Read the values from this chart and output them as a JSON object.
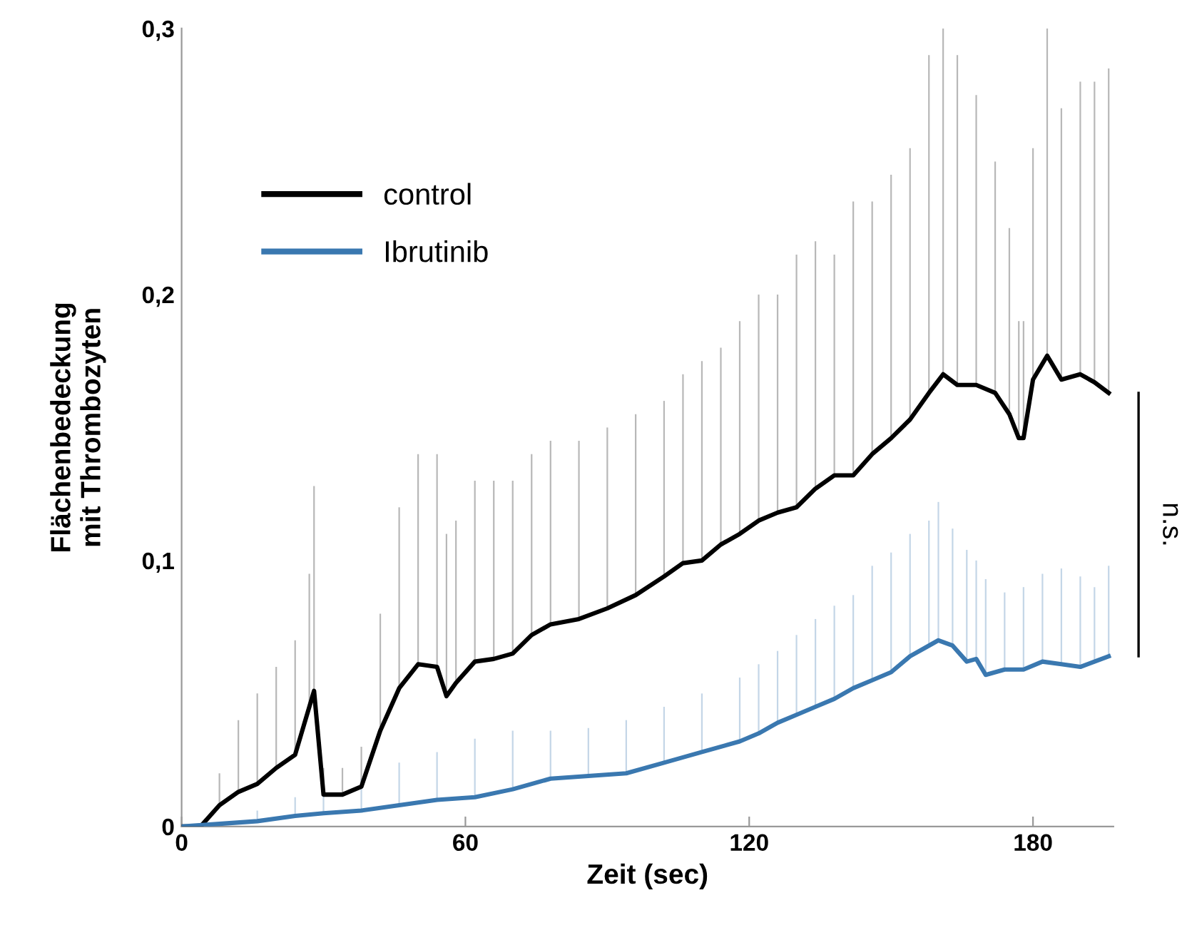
{
  "chart_data": {
    "type": "line",
    "xlabel": "Zeit (sec)",
    "ylabel": "Flächenbedeckung\nmit Thrombozyten",
    "xlim": [
      0,
      197
    ],
    "xticks": [
      0,
      60,
      120,
      180
    ],
    "ylim": [
      0,
      0.3
    ],
    "yticks": [
      0,
      {
        "value": 0.1,
        "label": "0,1"
      },
      {
        "value": 0.2,
        "label": "0,2"
      },
      {
        "value": 0.3,
        "label": "0,3"
      }
    ],
    "grid": false,
    "legend": "top left",
    "marker": "none",
    "line_style": "solid",
    "annotations": [
      "n.s."
    ],
    "series": [
      {
        "name": "control",
        "color": "#000000",
        "x": [
          0,
          4,
          8,
          12,
          16,
          20,
          24,
          27,
          28,
          30,
          34,
          38,
          42,
          46,
          50,
          54,
          56,
          58,
          62,
          66,
          70,
          74,
          78,
          84,
          90,
          96,
          102,
          106,
          110,
          114,
          118,
          122,
          126,
          130,
          134,
          138,
          142,
          146,
          150,
          154,
          158,
          161,
          164,
          168,
          172,
          175,
          177,
          178,
          180,
          183,
          186,
          190,
          193,
          196
        ],
        "values": [
          0,
          0,
          0.008,
          0.013,
          0.016,
          0.022,
          0.027,
          0.045,
          0.051,
          0.012,
          0.012,
          0.015,
          0.036,
          0.052,
          0.061,
          0.06,
          0.049,
          0.054,
          0.062,
          0.063,
          0.065,
          0.072,
          0.076,
          0.078,
          0.082,
          0.087,
          0.094,
          0.099,
          0.1,
          0.106,
          0.11,
          0.115,
          0.118,
          0.12,
          0.127,
          0.132,
          0.132,
          0.14,
          0.146,
          0.153,
          0.163,
          0.17,
          0.166,
          0.166,
          0.163,
          0.155,
          0.146,
          0.146,
          0.168,
          0.177,
          0.168,
          0.17,
          0.167,
          0.163
        ],
        "errors": [
          null,
          null,
          [
            0.008,
            0.02
          ],
          [
            0.013,
            0.04
          ],
          [
            0.016,
            0.05
          ],
          [
            0.022,
            0.06
          ],
          [
            0.027,
            0.07
          ],
          [
            0.045,
            0.095
          ],
          [
            0.051,
            0.128
          ],
          [
            0.012,
            0.022
          ],
          [
            0.012,
            0.022
          ],
          [
            0.015,
            0.03
          ],
          [
            0.036,
            0.08
          ],
          [
            0.052,
            0.12
          ],
          [
            0.061,
            0.14
          ],
          [
            0.06,
            0.14
          ],
          [
            0.049,
            0.11
          ],
          [
            0.054,
            0.115
          ],
          [
            0.062,
            0.13
          ],
          [
            0.063,
            0.13
          ],
          [
            0.065,
            0.13
          ],
          [
            0.072,
            0.14
          ],
          [
            0.076,
            0.145
          ],
          [
            0.078,
            0.145
          ],
          [
            0.082,
            0.15
          ],
          [
            0.087,
            0.155
          ],
          [
            0.094,
            0.16
          ],
          [
            0.099,
            0.17
          ],
          [
            0.1,
            0.175
          ],
          [
            0.106,
            0.18
          ],
          [
            0.11,
            0.19
          ],
          [
            0.115,
            0.2
          ],
          [
            0.118,
            0.2
          ],
          [
            0.12,
            0.215
          ],
          [
            0.127,
            0.22
          ],
          [
            0.132,
            0.215
          ],
          [
            0.132,
            0.235
          ],
          [
            0.14,
            0.235
          ],
          [
            0.146,
            0.245
          ],
          [
            0.153,
            0.255
          ],
          [
            0.163,
            0.29
          ],
          [
            0.17,
            0.3
          ],
          [
            0.166,
            0.29
          ],
          [
            0.166,
            0.275
          ],
          [
            0.163,
            0.25
          ],
          [
            0.155,
            0.225
          ],
          [
            0.146,
            0.19
          ],
          [
            0.146,
            0.19
          ],
          [
            0.168,
            0.255
          ],
          [
            0.177,
            0.3
          ],
          [
            0.168,
            0.27
          ],
          [
            0.17,
            0.28
          ],
          [
            0.167,
            0.28
          ],
          [
            0.163,
            0.285
          ]
        ]
      },
      {
        "name": "Ibrutinib",
        "color": "#3a78b0",
        "x": [
          0,
          8,
          16,
          24,
          30,
          38,
          46,
          54,
          62,
          70,
          78,
          86,
          94,
          102,
          110,
          118,
          122,
          126,
          130,
          134,
          138,
          142,
          146,
          150,
          154,
          158,
          160,
          163,
          166,
          168,
          170,
          174,
          178,
          182,
          186,
          190,
          193,
          196
        ],
        "values": [
          0,
          0.001,
          0.002,
          0.004,
          0.005,
          0.006,
          0.008,
          0.01,
          0.011,
          0.014,
          0.018,
          0.019,
          0.02,
          0.024,
          0.028,
          0.032,
          0.035,
          0.039,
          0.042,
          0.045,
          0.048,
          0.052,
          0.055,
          0.058,
          0.064,
          0.068,
          0.07,
          0.068,
          0.062,
          0.063,
          0.057,
          0.059,
          0.059,
          0.062,
          0.061,
          0.06,
          0.062,
          0.064
        ],
        "errors": [
          null,
          null,
          [
            0.002,
            0.006
          ],
          [
            0.004,
            0.011
          ],
          [
            0.005,
            0.013
          ],
          [
            0.006,
            0.018
          ],
          [
            0.008,
            0.024
          ],
          [
            0.01,
            0.028
          ],
          [
            0.011,
            0.033
          ],
          [
            0.014,
            0.036
          ],
          [
            0.018,
            0.036
          ],
          [
            0.019,
            0.037
          ],
          [
            0.02,
            0.04
          ],
          [
            0.024,
            0.045
          ],
          [
            0.028,
            0.05
          ],
          [
            0.032,
            0.056
          ],
          [
            0.035,
            0.061
          ],
          [
            0.039,
            0.066
          ],
          [
            0.042,
            0.072
          ],
          [
            0.045,
            0.078
          ],
          [
            0.048,
            0.083
          ],
          [
            0.052,
            0.087
          ],
          [
            0.055,
            0.098
          ],
          [
            0.058,
            0.103
          ],
          [
            0.064,
            0.11
          ],
          [
            0.068,
            0.115
          ],
          [
            0.07,
            0.122
          ],
          [
            0.068,
            0.112
          ],
          [
            0.062,
            0.104
          ],
          [
            0.063,
            0.1
          ],
          [
            0.057,
            0.093
          ],
          [
            0.059,
            0.088
          ],
          [
            0.059,
            0.09
          ],
          [
            0.062,
            0.095
          ],
          [
            0.061,
            0.097
          ],
          [
            0.06,
            0.094
          ],
          [
            0.062,
            0.09
          ],
          [
            0.064,
            0.098
          ]
        ]
      }
    ]
  }
}
